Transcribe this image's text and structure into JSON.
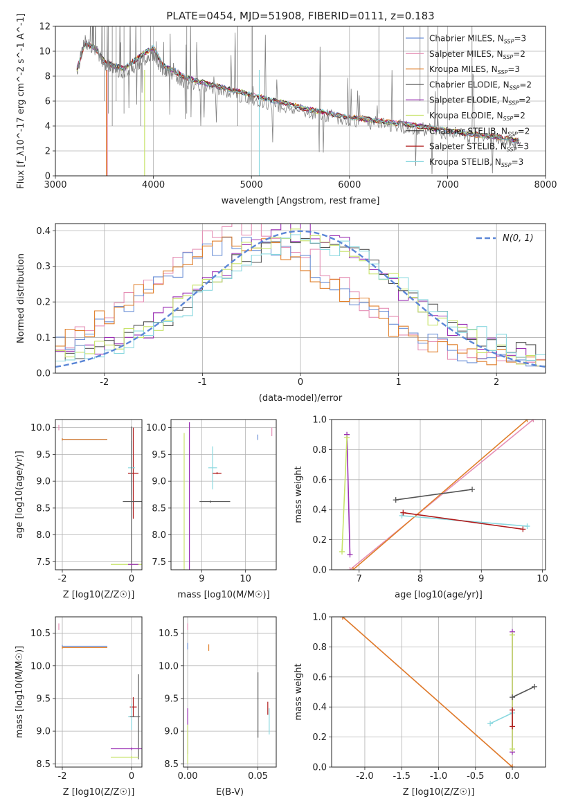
{
  "figure": {
    "title": "PLATE=0454, MJD=51908, FIBERID=0111, z=0.183"
  },
  "colors": {
    "chabrier_miles": "#6a8fd6",
    "salpeter_miles": "#e58fb5",
    "kroupa_miles": "#e07f2a",
    "chabrier_elodie": "#555555",
    "salpeter_elodie": "#9a2fb3",
    "kroupa_elodie": "#c7e36a",
    "chabrier_stelib": "#333333",
    "salpeter_stelib": "#b01c1c",
    "kroupa_stelib": "#8ad8df",
    "data": "#808080",
    "gauss": "#5b86d6"
  },
  "chart_data": [
    {
      "id": "spectrum",
      "type": "line",
      "xlabel": "wavelength [Angstrom, rest frame]",
      "ylabel": "Flux [f_λ10^-17 erg cm^-2 s^-1 A^-1]",
      "xlim": [
        3000,
        8000
      ],
      "ylim": [
        0,
        12
      ],
      "xticks": [
        3000,
        4000,
        5000,
        6000,
        7000,
        8000
      ],
      "yticks": [
        0,
        2,
        4,
        6,
        8,
        10,
        12
      ],
      "grid": true,
      "legend_position": "top-right",
      "legend": [
        {
          "key": "chabrier_miles",
          "name": "Chabrier MILES",
          "nssp": "3"
        },
        {
          "key": "salpeter_miles",
          "name": "Salpeter MILES",
          "nssp": "2"
        },
        {
          "key": "kroupa_miles",
          "name": "Kroupa MILES",
          "nssp": "3"
        },
        {
          "key": "chabrier_elodie",
          "name": "Chabrier ELODIE",
          "nssp": "2"
        },
        {
          "key": "salpeter_elodie",
          "name": "Salpeter ELODIE",
          "nssp": "2"
        },
        {
          "key": "kroupa_elodie",
          "name": "Kroupa ELODIE",
          "nssp": "2"
        },
        {
          "key": "chabrier_stelib",
          "name": "Chabrier STELIB",
          "nssp": "2"
        },
        {
          "key": "salpeter_stelib",
          "name": "Salpeter STELIB",
          "nssp": "3"
        },
        {
          "key": "kroupa_stelib",
          "name": "Kroupa STELIB",
          "nssp": "3"
        }
      ],
      "data_x": [
        3220,
        3300,
        3400,
        3500,
        3600,
        3700,
        3800,
        3900,
        4000,
        4100,
        4200,
        4300,
        4400,
        4600,
        4800,
        5000,
        5200,
        5400,
        5600,
        5800,
        6000,
        6200,
        6400,
        6600,
        6800,
        7000,
        7200,
        7400,
        7600,
        7750
      ],
      "data_y": [
        8.4,
        10.8,
        10.2,
        9.0,
        8.6,
        8.3,
        8.8,
        9.3,
        9.8,
        8.4,
        8.2,
        7.6,
        7.4,
        7.0,
        6.6,
        6.2,
        5.8,
        5.4,
        5.1,
        4.8,
        4.5,
        4.3,
        4.1,
        3.9,
        3.7,
        3.4,
        3.2,
        3.0,
        2.8,
        2.5
      ],
      "model_x": [
        3220,
        3300,
        3400,
        3500,
        3600,
        3700,
        3800,
        3900,
        4000,
        4100,
        4200,
        4300,
        4400,
        4600,
        4800,
        5000,
        5200,
        5400,
        5600,
        5800,
        6000,
        6200,
        6400,
        6600,
        6800,
        7000,
        7200,
        7400,
        7600,
        7750
      ],
      "model_y": [
        8.6,
        10.6,
        10.3,
        9.2,
        8.8,
        8.6,
        9.2,
        9.8,
        10.3,
        8.8,
        8.5,
        8.0,
        7.7,
        7.3,
        6.9,
        6.5,
        6.1,
        5.7,
        5.3,
        5.0,
        4.7,
        4.5,
        4.3,
        4.1,
        3.9,
        3.6,
        3.4,
        3.2,
        3.0,
        2.7
      ]
    },
    {
      "id": "residuals",
      "type": "line",
      "xlabel": "(data-model)/error",
      "ylabel": "Normed distribution",
      "xlim": [
        -2.5,
        2.5
      ],
      "ylim": [
        0,
        0.42
      ],
      "xticks": [
        -2,
        -1,
        0,
        1,
        2
      ],
      "yticks": [
        0.0,
        0.1,
        0.2,
        0.3,
        0.4
      ],
      "grid": true,
      "legend_position": "top-right",
      "gauss_label": "N(0, 1)",
      "series": [
        {
          "key": "salpeter_miles",
          "mu": -0.55,
          "sigma": 0.95,
          "amp": 0.38
        },
        {
          "key": "chabrier_miles",
          "mu": -0.55,
          "sigma": 1.0,
          "amp": 0.34
        },
        {
          "key": "kroupa_miles",
          "mu": -0.6,
          "sigma": 1.0,
          "amp": 0.33
        },
        {
          "key": "salpeter_elodie",
          "mu": 0.0,
          "sigma": 0.95,
          "amp": 0.37
        },
        {
          "key": "chabrier_elodie",
          "mu": 0.05,
          "sigma": 1.0,
          "amp": 0.35
        },
        {
          "key": "kroupa_elodie",
          "mu": 0.0,
          "sigma": 0.95,
          "amp": 0.37
        },
        {
          "key": "kroupa_stelib",
          "mu": 0.1,
          "sigma": 1.0,
          "amp": 0.34
        }
      ]
    },
    {
      "id": "age_vs_Z",
      "type": "scatter",
      "xlabel": "Z [log10(Z/Z☉)]",
      "ylabel": "age  [log10(age/yr)]",
      "xlim": [
        -2.2,
        0.3
      ],
      "ylim": [
        7.35,
        10.15
      ],
      "xticks": [
        -2,
        0
      ],
      "yticks": [
        7.5,
        8.0,
        8.5,
        9.0,
        9.5,
        10.0
      ],
      "grid": true,
      "points": [
        {
          "key": "chabrier_miles",
          "x": -2.0,
          "y": 9.78,
          "xerr": [
            0,
            1.3
          ],
          "yerr": 0.02
        },
        {
          "key": "kroupa_miles",
          "x": -2.0,
          "y": 9.78,
          "xerr": [
            0,
            1.3
          ],
          "yerr": 0.02
        },
        {
          "key": "salpeter_miles",
          "x": -2.1,
          "y": 10.0,
          "xerr": [
            0,
            0
          ],
          "yerr": 0.05
        },
        {
          "key": "salpeter_stelib",
          "x": 0.05,
          "y": 9.15,
          "xerr": [
            0.15,
            0.15
          ],
          "yerr": 0.85
        },
        {
          "key": "kroupa_stelib",
          "x": 0.0,
          "y": 9.25,
          "xerr": [
            0.1,
            0.1
          ],
          "yerr": 0.5
        },
        {
          "key": "chabrier_elodie",
          "x": 0.0,
          "y": 8.62,
          "xerr": [
            0.25,
            0.3
          ],
          "yerr": 1.4
        },
        {
          "key": "kroupa_elodie",
          "x": 0.0,
          "y": 7.45,
          "xerr": [
            0.6,
            0.3
          ],
          "yerr": 0.02
        },
        {
          "key": "salpeter_elodie",
          "x": 0.0,
          "y": 7.45,
          "xerr": [
            0.1,
            0.2
          ],
          "yerr": 0.02
        }
      ]
    },
    {
      "id": "age_vs_mass",
      "type": "scatter",
      "xlabel": "mass [log10(M/M☉)]",
      "ylabel": "",
      "xlim": [
        8.3,
        10.7
      ],
      "ylim": [
        7.35,
        10.15
      ],
      "xticks": [
        9,
        10
      ],
      "yticks": [
        7.5,
        8.0,
        8.5,
        9.0,
        9.5,
        10.0
      ],
      "grid": true,
      "points": [
        {
          "key": "kroupa_elodie",
          "x": 8.6,
          "y": 8.6,
          "xerr": [
            0,
            0
          ],
          "yerr": 1.3
        },
        {
          "key": "salpeter_elodie",
          "x": 8.72,
          "y": 8.7,
          "xerr": [
            0,
            0
          ],
          "yerr": 1.4
        },
        {
          "key": "chabrier_elodie",
          "x": 9.2,
          "y": 8.62,
          "xerr": [
            0.25,
            0.45
          ],
          "yerr": 0.02
        },
        {
          "key": "kroupa_stelib",
          "x": 9.25,
          "y": 9.25,
          "xerr": [
            0.1,
            0.1
          ],
          "yerr": 0.4
        },
        {
          "key": "salpeter_stelib",
          "x": 9.35,
          "y": 9.15,
          "xerr": [
            0.1,
            0.1
          ],
          "yerr": 0.02
        },
        {
          "key": "chabrier_miles",
          "x": 10.28,
          "y": 9.82,
          "xerr": [
            0,
            0
          ],
          "yerr": 0.05
        },
        {
          "key": "salpeter_miles",
          "x": 10.6,
          "y": 9.92,
          "xerr": [
            0,
            0
          ],
          "yerr": 0.08
        }
      ]
    },
    {
      "id": "mw_vs_age",
      "type": "line",
      "xlabel": "age  [log10(age/yr)]",
      "ylabel": "mass weight",
      "xlim": [
        6.55,
        10.05
      ],
      "ylim": [
        0,
        1
      ],
      "xticks": [
        7,
        8,
        9,
        10
      ],
      "yticks": [
        0.0,
        0.2,
        0.4,
        0.6,
        0.8,
        1.0
      ],
      "grid": true,
      "lines": [
        {
          "key": "salpeter_miles",
          "x": [
            6.85,
            9.85
          ],
          "y": [
            0.0,
            1.0
          ]
        },
        {
          "key": "kroupa_miles",
          "x": [
            6.9,
            9.75
          ],
          "y": [
            0.0,
            1.0
          ]
        },
        {
          "key": "salpeter_elodie",
          "x": [
            6.8,
            6.85
          ],
          "y": [
            0.9,
            0.1
          ]
        },
        {
          "key": "kroupa_elodie",
          "x": [
            6.72,
            6.8
          ],
          "y": [
            0.12,
            0.88
          ]
        },
        {
          "key": "chabrier_elodie",
          "x": [
            7.6,
            8.85
          ],
          "y": [
            0.465,
            0.535
          ]
        },
        {
          "key": "kroupa_stelib",
          "x": [
            7.7,
            9.75
          ],
          "y": [
            0.36,
            0.29
          ]
        },
        {
          "key": "salpeter_stelib",
          "x": [
            7.72,
            9.68
          ],
          "y": [
            0.38,
            0.27
          ]
        }
      ]
    },
    {
      "id": "mass_vs_Z",
      "type": "scatter",
      "xlabel": "Z [log10(Z/Z☉)]",
      "ylabel": "mass [log10(M/M☉)]",
      "xlim": [
        -2.2,
        0.3
      ],
      "ylim": [
        8.45,
        10.75
      ],
      "xticks": [
        -2,
        0
      ],
      "yticks": [
        8.5,
        9.0,
        9.5,
        10.0,
        10.5
      ],
      "grid": true,
      "points": [
        {
          "key": "salpeter_miles",
          "x": -2.1,
          "y": 10.6,
          "xerr": [
            0,
            0
          ],
          "yerr": 0.05
        },
        {
          "key": "chabrier_miles",
          "x": -2.0,
          "y": 10.3,
          "xerr": [
            0,
            1.3
          ],
          "yerr": 0.02
        },
        {
          "key": "kroupa_miles",
          "x": -2.0,
          "y": 10.28,
          "xerr": [
            0,
            1.3
          ],
          "yerr": 0.02
        },
        {
          "key": "salpeter_stelib",
          "x": 0.05,
          "y": 9.37,
          "xerr": [
            0.1,
            0.1
          ],
          "yerr": 0.15
        },
        {
          "key": "kroupa_stelib",
          "x": 0.0,
          "y": 9.22,
          "xerr": [
            0.1,
            0.1
          ],
          "yerr": 0.2
        },
        {
          "key": "chabrier_elodie",
          "x": 0.2,
          "y": 9.22,
          "xerr": [
            0.25,
            0.05
          ],
          "yerr": 0.65
        },
        {
          "key": "salpeter_elodie",
          "x": 0.0,
          "y": 8.73,
          "xerr": [
            0.6,
            0.3
          ],
          "yerr": 0.02
        },
        {
          "key": "kroupa_elodie",
          "x": 0.0,
          "y": 8.6,
          "xerr": [
            0.6,
            0.2
          ],
          "yerr": 0.02
        }
      ]
    },
    {
      "id": "mass_vs_ebv",
      "type": "scatter",
      "xlabel": "E(B-V)",
      "ylabel": "",
      "xlim": [
        -0.003,
        0.063
      ],
      "ylim": [
        8.45,
        10.75
      ],
      "xticks": [
        0.0,
        0.05
      ],
      "yticks": [
        8.5,
        9.0,
        9.5,
        10.0,
        10.5
      ],
      "grid": true,
      "points": [
        {
          "key": "salpeter_miles",
          "x": 0.0,
          "y": 10.6,
          "xerr": [
            0,
            0
          ],
          "yerr": 0.05
        },
        {
          "key": "chabrier_miles",
          "x": 0.0,
          "y": 10.3,
          "xerr": [
            0,
            0
          ],
          "yerr": 0.05
        },
        {
          "key": "kroupa_miles",
          "x": 0.015,
          "y": 10.28,
          "xerr": [
            0,
            0
          ],
          "yerr": 0.05
        },
        {
          "key": "salpeter_elodie",
          "x": 0.0,
          "y": 9.0,
          "xerr": [
            0,
            0
          ],
          "yerr": 0.35
        },
        {
          "key": "kroupa_elodie",
          "x": 0.0,
          "y": 8.8,
          "xerr": [
            0,
            0
          ],
          "yerr": 0.3
        },
        {
          "key": "chabrier_elodie",
          "x": 0.05,
          "y": 9.4,
          "xerr": [
            0,
            0
          ],
          "yerr": 0.5
        },
        {
          "key": "salpeter_stelib",
          "x": 0.057,
          "y": 9.35,
          "xerr": [
            0,
            0
          ],
          "yerr": 0.1
        },
        {
          "key": "kroupa_stelib",
          "x": 0.058,
          "y": 9.15,
          "xerr": [
            0,
            0
          ],
          "yerr": 0.2
        }
      ]
    },
    {
      "id": "mw_vs_Z",
      "type": "line",
      "xlabel": "Z [log10(Z/Z☉)]",
      "ylabel": "mass weight",
      "xlim": [
        -2.45,
        0.45
      ],
      "ylim": [
        0,
        1
      ],
      "xticks": [
        -2.0,
        -1.5,
        -1.0,
        -0.5,
        0.0
      ],
      "yticks": [
        0.0,
        0.2,
        0.4,
        0.6,
        0.8,
        1.0
      ],
      "grid": true,
      "lines": [
        {
          "key": "salpeter_miles",
          "x": [
            -2.3,
            0.0
          ],
          "y": [
            1.0,
            0.0
          ]
        },
        {
          "key": "kroupa_miles",
          "x": [
            -2.3,
            0.0
          ],
          "y": [
            1.0,
            0.0
          ]
        },
        {
          "key": "salpeter_elodie",
          "x": [
            0.0,
            0.0
          ],
          "y": [
            0.9,
            0.1
          ]
        },
        {
          "key": "kroupa_elodie",
          "x": [
            0.0,
            0.0
          ],
          "y": [
            0.88,
            0.12
          ]
        },
        {
          "key": "chabrier_elodie",
          "x": [
            0.0,
            0.3
          ],
          "y": [
            0.465,
            0.535
          ]
        },
        {
          "key": "kroupa_stelib",
          "x": [
            -0.3,
            0.0
          ],
          "y": [
            0.29,
            0.36
          ]
        },
        {
          "key": "salpeter_stelib",
          "x": [
            0.0,
            0.0
          ],
          "y": [
            0.38,
            0.27
          ]
        }
      ]
    }
  ]
}
